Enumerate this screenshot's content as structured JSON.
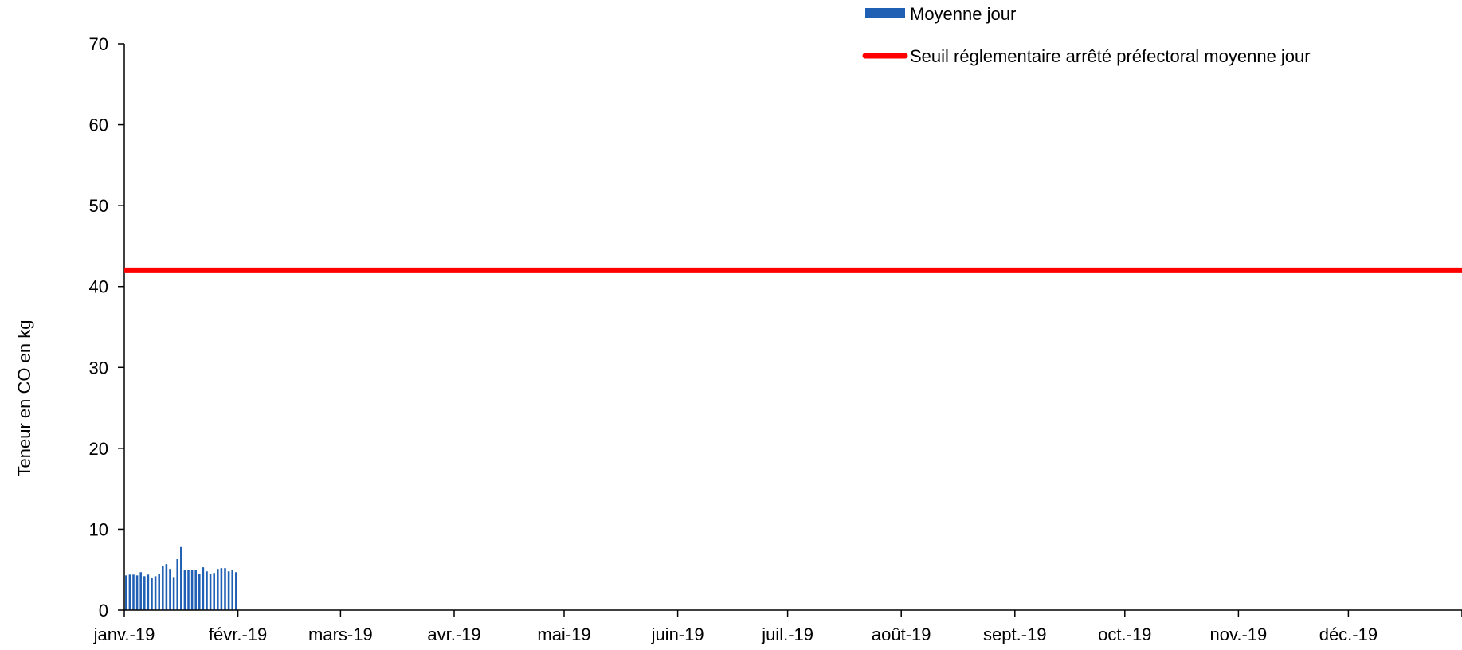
{
  "chart_data": {
    "type": "bar",
    "title": "",
    "xlabel": "",
    "ylabel": "Teneur en CO en kg",
    "ylim": [
      0,
      70
    ],
    "yticks": [
      0,
      10,
      20,
      30,
      40,
      50,
      60,
      70
    ],
    "xlim": [
      "2019-01-01",
      "2020-01-01"
    ],
    "xticks": [
      {
        "date": "2019-01-01",
        "label": "janv.-19"
      },
      {
        "date": "2019-02-01",
        "label": "févr.-19"
      },
      {
        "date": "2019-03-01",
        "label": "mars-19"
      },
      {
        "date": "2019-04-01",
        "label": "avr.-19"
      },
      {
        "date": "2019-05-01",
        "label": "mai-19"
      },
      {
        "date": "2019-06-01",
        "label": "juin-19"
      },
      {
        "date": "2019-07-01",
        "label": "juil.-19"
      },
      {
        "date": "2019-08-01",
        "label": "août-19"
      },
      {
        "date": "2019-09-01",
        "label": "sept.-19"
      },
      {
        "date": "2019-10-01",
        "label": "oct.-19"
      },
      {
        "date": "2019-11-01",
        "label": "nov.-19"
      },
      {
        "date": "2019-12-01",
        "label": "déc.-19"
      }
    ],
    "grid": false,
    "legend_position": "top-right",
    "series": [
      {
        "name": "Moyenne jour",
        "type": "bar",
        "color": "#1F5FB4",
        "x": [
          "2019-01-01",
          "2019-01-02",
          "2019-01-03",
          "2019-01-04",
          "2019-01-05",
          "2019-01-06",
          "2019-01-07",
          "2019-01-08",
          "2019-01-09",
          "2019-01-10",
          "2019-01-11",
          "2019-01-12",
          "2019-01-13",
          "2019-01-14",
          "2019-01-15",
          "2019-01-16",
          "2019-01-17",
          "2019-01-18",
          "2019-01-19",
          "2019-01-20",
          "2019-01-21",
          "2019-01-22",
          "2019-01-23",
          "2019-01-24",
          "2019-01-25",
          "2019-01-26",
          "2019-01-27",
          "2019-01-28",
          "2019-01-29",
          "2019-01-30",
          "2019-01-31"
        ],
        "values": [
          4.3,
          4.4,
          4.4,
          4.3,
          4.7,
          4.2,
          4.4,
          4.0,
          4.2,
          4.5,
          5.5,
          5.7,
          5.1,
          4.1,
          6.3,
          7.8,
          5.0,
          5.0,
          5.0,
          5.0,
          4.5,
          5.3,
          4.8,
          4.5,
          4.6,
          5.1,
          5.2,
          5.2,
          4.8,
          5.0,
          4.7
        ]
      },
      {
        "name": "Seuil réglementaire arrêté préfectoral moyenne jour",
        "type": "line",
        "color": "#FF0000",
        "x": [
          "2019-01-01",
          "2020-01-01"
        ],
        "values": [
          42,
          42
        ]
      }
    ]
  }
}
